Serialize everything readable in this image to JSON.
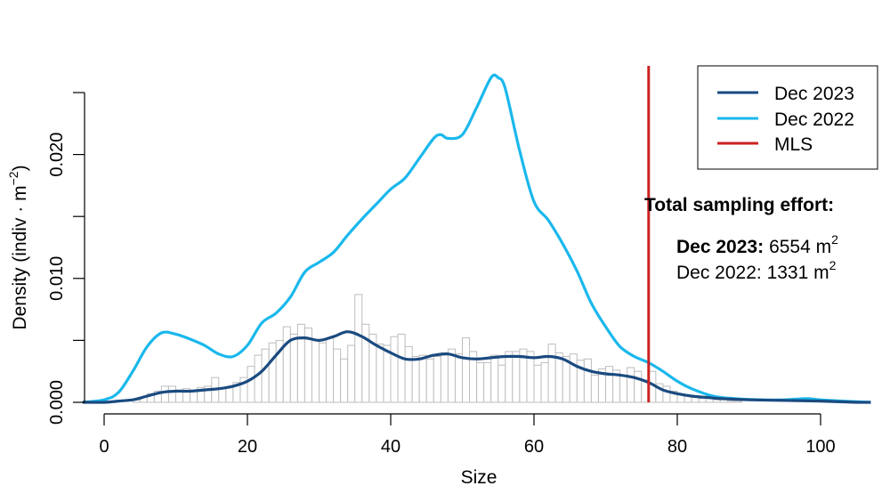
{
  "chart_data": {
    "type": "line",
    "xlabel": "Size",
    "ylabel": "Density (indiv · m",
    "ylabel_sup": "−2",
    "ylabel_close": ")",
    "xlim": [
      -3,
      107
    ],
    "ylim": [
      -0.001,
      0.0255
    ],
    "x_ticks": [
      0,
      20,
      40,
      60,
      80,
      100
    ],
    "x_tick_labels": [
      "0",
      "20",
      "40",
      "60",
      "80",
      "100"
    ],
    "y_ticks": [
      0.0,
      0.005,
      0.01,
      0.015,
      0.02,
      0.025
    ],
    "y_tick_labels": [
      "0.000",
      "",
      "0.010",
      "",
      "0.020",
      ""
    ],
    "colors": {
      "dec2023": "#1a4a80",
      "dec2022": "#1ab8ec",
      "mls": "#cc2222",
      "hist_fill": "#ffffff",
      "hist_stroke": "#bdbdbd"
    },
    "legend": {
      "position": "top-right",
      "entries": [
        {
          "label": "Dec 2023",
          "color": "#1a4a80"
        },
        {
          "label": "Dec 2022",
          "color": "#1ab8ec"
        },
        {
          "label": "MLS",
          "color": "#cc2222"
        }
      ]
    },
    "mls_x": 76,
    "series": [
      {
        "name": "Dec 2023",
        "x": [
          -3,
          0,
          2,
          4,
          6,
          8,
          10,
          12,
          14,
          16,
          18,
          20,
          22,
          24,
          26,
          28,
          30,
          32,
          34,
          36,
          38,
          40,
          42,
          44,
          46,
          48,
          50,
          52,
          54,
          56,
          58,
          60,
          62,
          64,
          66,
          68,
          70,
          72,
          74,
          76,
          78,
          80,
          82,
          84,
          86,
          88,
          90,
          95,
          100,
          105,
          107
        ],
        "y": [
          0,
          0,
          0.0001,
          0.0002,
          0.0005,
          0.0008,
          0.0009,
          0.0009,
          0.001,
          0.0011,
          0.0013,
          0.0017,
          0.0025,
          0.0038,
          0.005,
          0.0052,
          0.005,
          0.0053,
          0.0057,
          0.0053,
          0.0046,
          0.004,
          0.0035,
          0.0035,
          0.0038,
          0.0039,
          0.0036,
          0.0035,
          0.0036,
          0.0037,
          0.0037,
          0.0036,
          0.0037,
          0.0035,
          0.0029,
          0.0025,
          0.0023,
          0.0022,
          0.002,
          0.0016,
          0.001,
          0.0007,
          0.0005,
          0.0004,
          0.0003,
          0.00025,
          0.0002,
          0.00015,
          0.0001,
          0,
          0
        ]
      },
      {
        "name": "Dec 2022",
        "x": [
          -3,
          0,
          2,
          4,
          6,
          8,
          10,
          12,
          14,
          16,
          18,
          20,
          22,
          24,
          26,
          28,
          30,
          32,
          34,
          36,
          38,
          40,
          42,
          44,
          46,
          47,
          48,
          50,
          52,
          54,
          55,
          56,
          58,
          60,
          62,
          64,
          66,
          68,
          70,
          72,
          74,
          76,
          78,
          80,
          82,
          85,
          88,
          92,
          95,
          98,
          100,
          103,
          107
        ],
        "y": [
          0,
          0.0002,
          0.0008,
          0.0025,
          0.0045,
          0.0056,
          0.0055,
          0.0051,
          0.0046,
          0.0039,
          0.0037,
          0.0046,
          0.0064,
          0.0072,
          0.0085,
          0.0105,
          0.0113,
          0.0121,
          0.0135,
          0.0148,
          0.016,
          0.0172,
          0.0181,
          0.0197,
          0.0213,
          0.0216,
          0.0213,
          0.0216,
          0.0238,
          0.0262,
          0.0262,
          0.0253,
          0.0203,
          0.0162,
          0.0147,
          0.0128,
          0.0106,
          0.008,
          0.0061,
          0.0045,
          0.0037,
          0.0032,
          0.0025,
          0.0017,
          0.0011,
          0.0005,
          0.0003,
          0.0002,
          0.0002,
          0.0003,
          0.0002,
          0.0001,
          0
        ]
      }
    ],
    "histogram": {
      "bin_width": 1,
      "bin_start": 4,
      "heights": [
        0.0002,
        0.0004,
        0.0007,
        0.0009,
        0.0013,
        0.0013,
        0.001,
        0.0011,
        0.0009,
        0.0012,
        0.0013,
        0.002,
        0.0011,
        0.0012,
        0.0016,
        0.002,
        0.0029,
        0.0038,
        0.0043,
        0.0048,
        0.005,
        0.0061,
        0.0055,
        0.0063,
        0.006,
        0.005,
        0.0048,
        0.0052,
        0.0043,
        0.0035,
        0.0046,
        0.0087,
        0.0063,
        0.0055,
        0.0047,
        0.0046,
        0.0053,
        0.0055,
        0.0045,
        0.0037,
        0.0038,
        0.0035,
        0.0037,
        0.004,
        0.0043,
        0.0039,
        0.0052,
        0.0041,
        0.0032,
        0.0032,
        0.0038,
        0.003,
        0.0041,
        0.0041,
        0.0043,
        0.0041,
        0.003,
        0.0032,
        0.0047,
        0.004,
        0.0037,
        0.0039,
        0.0034,
        0.0035,
        0.0022,
        0.0027,
        0.0029,
        0.0026,
        0.0022,
        0.0028,
        0.0025,
        0.0018,
        0.0025,
        0.0015,
        0.0013,
        0.0009,
        0.0006,
        0.0005,
        0.0004,
        0.0003,
        0.0003,
        0.0002,
        0.0002,
        0.0001,
        0.0001
      ]
    }
  },
  "annotation": {
    "title": "Total sampling effort:",
    "line1_label": "Dec 2023:",
    "line1_value": "6554 m",
    "line1_sup": "2",
    "line2_text": "Dec 2022: 1331 m",
    "line2_sup": "2"
  }
}
